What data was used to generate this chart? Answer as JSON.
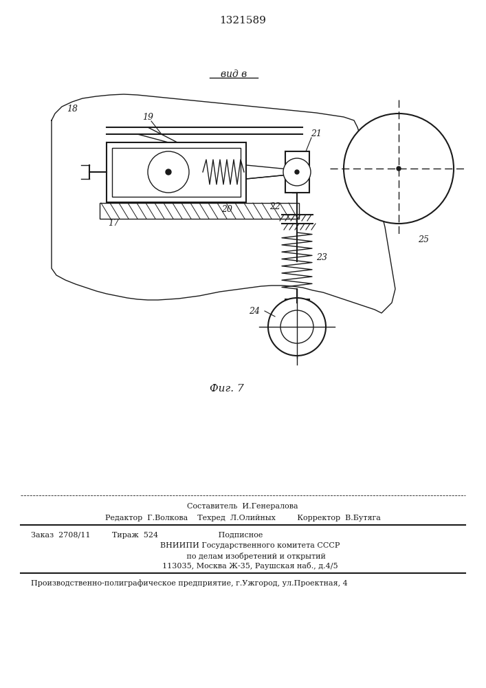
{
  "patent_number": "1321589",
  "view_label": "вид в",
  "fig_label": "Фиг. 7",
  "background_color": "#ffffff",
  "line_color": "#1a1a1a",
  "text_color": "#1a1a1a",
  "footer_lines": [
    "Составитель  И.Генералова",
    "Редактор  Г.Волкова    Техред  Л.Олийных         Корректор  В.Бутяга",
    "Заказ  2708/11         Тираж  524                         Подписное",
    "      ВНИИПИ Государственного комитета СССР",
    "           по делам изобретений и открытий",
    "      113035, Москва Ж-35, Раушская наб., д.4/5",
    "Производственно-полиграфическое предприятие, г.Ужгород, ул.Проектная, 4"
  ]
}
